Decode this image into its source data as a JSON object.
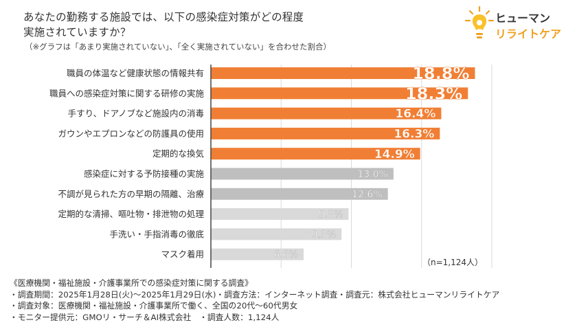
{
  "header": {
    "title_line1": "あなたの勤務する施設では、以下の感染症対策がどの程度",
    "title_line2": "実施されていますか？",
    "subtitle": "（※グラフは「あまり実施されていない」、「全く実施されていない」を合わせた割合）"
  },
  "logo": {
    "line1": "ヒューマン",
    "line2": "リライトケア"
  },
  "note": "（n=1,124人）",
  "footer": {
    "lines": [
      "《医療機関・福祉施設・介護事業所での感染症対策に関する調査》",
      "・調査期間：2025年1月28日(火)～2025年1月29日(水)・調査方法：インターネット調査・調査元：株式会社ヒューマンリライトケア",
      "・調査対象：医療機関・福祉施設・介護事業所で働く、全国の20代～60代男女",
      "・モニター提供元：GMOリ・サーチ＆AI株式会社　・調査人数：1,124人"
    ]
  },
  "colors": {
    "orange": "#f07f35",
    "gray_dark": "#bfbfbf",
    "gray_light": "#d9d9d9",
    "grid": "#d9d9d9",
    "axis": "#444444",
    "logo_accent": "#f0a020"
  },
  "chart_data": {
    "type": "bar",
    "orientation": "horizontal",
    "categories": [
      "職員の体温など健康状態の情報共有",
      "職員への感染症対策に関する研修の実施",
      "手すり、ドアノブなど施設内の消毒",
      "ガウンやエプロンなどの防護具の使用",
      "定期的な換気",
      "感染症に対する予防接種の実施",
      "不調が見られた方の早期の隔離、治療",
      "定期的な清掃、嘔吐物・排泄物の処理",
      "手洗い・手指消毒の徹底",
      "マスク着用"
    ],
    "values": [
      18.8,
      18.3,
      16.4,
      16.3,
      14.9,
      13.0,
      12.6,
      9.8,
      9.3,
      6.6
    ],
    "labels": [
      "18.8%",
      "18.3%",
      "16.4%",
      "16.3%",
      "14.9%",
      "13.0%",
      "12.6%",
      "9.8%",
      "9.3%",
      "6.6%"
    ],
    "bar_styles": [
      "orange",
      "orange",
      "orange",
      "orange",
      "orange",
      "gray_dark",
      "gray_dark",
      "gray_light",
      "gray_light",
      "gray_light"
    ],
    "xlim": [
      0,
      25
    ],
    "grid": true,
    "unit": "%"
  }
}
